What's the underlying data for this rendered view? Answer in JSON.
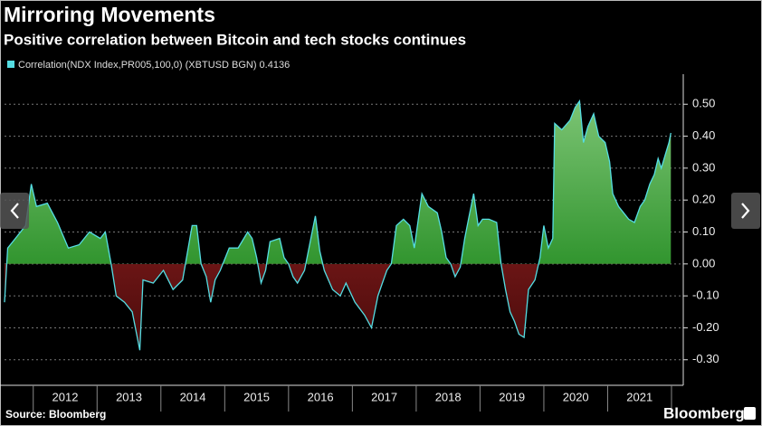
{
  "chart_data": {
    "type": "area",
    "title": "Mirroring Movements",
    "subtitle": "Positive correlation between Bitcoin and tech stocks continues",
    "source": "Source: Bloomberg",
    "brand": "Bloomberg",
    "x": [
      2011.55,
      2011.6,
      2011.72,
      2011.88,
      2011.97,
      2012.05,
      2012.22,
      2012.38,
      2012.55,
      2012.72,
      2012.88,
      2013.05,
      2013.13,
      2013.22,
      2013.3,
      2013.43,
      2013.55,
      2013.67,
      2013.72,
      2013.88,
      2014.04,
      2014.19,
      2014.34,
      2014.49,
      2014.56,
      2014.63,
      2014.71,
      2014.78,
      2014.85,
      2014.93,
      2015.07,
      2015.21,
      2015.36,
      2015.43,
      2015.5,
      2015.57,
      2015.64,
      2015.71,
      2015.86,
      2015.93,
      2016.0,
      2016.07,
      2016.14,
      2016.25,
      2016.35,
      2016.42,
      2016.49,
      2016.56,
      2016.69,
      2016.81,
      2016.9,
      2017.04,
      2017.19,
      2017.3,
      2017.4,
      2017.47,
      2017.54,
      2017.61,
      2017.69,
      2017.8,
      2017.9,
      2017.97,
      2018.09,
      2018.19,
      2018.33,
      2018.4,
      2018.47,
      2018.54,
      2018.61,
      2018.69,
      2018.76,
      2018.83,
      2018.9,
      2018.97,
      2019.04,
      2019.14,
      2019.26,
      2019.33,
      2019.4,
      2019.47,
      2019.54,
      2019.61,
      2019.69,
      2019.76,
      2019.86,
      2019.94,
      2020.0,
      2020.07,
      2020.14,
      2020.17,
      2020.28,
      2020.41,
      2020.49,
      2020.56,
      2020.62,
      2020.69,
      2020.78,
      2020.86,
      2020.96,
      2021.03,
      2021.08,
      2021.17,
      2021.25,
      2021.33,
      2021.42,
      2021.51,
      2021.58,
      2021.66,
      2021.73,
      2021.79,
      2021.84,
      2021.9,
      2021.96,
      2021.99
    ],
    "series": [
      {
        "name": "Correlation(NDX Index,PR005,100,0) (XBTUSD BGN) 0.4136",
        "color": "#55dde3",
        "values": [
          -0.12,
          0.05,
          0.08,
          0.12,
          0.25,
          0.18,
          0.19,
          0.13,
          0.05,
          0.06,
          0.1,
          0.08,
          0.1,
          0.0,
          -0.1,
          -0.12,
          -0.15,
          -0.27,
          -0.05,
          -0.06,
          -0.02,
          -0.08,
          -0.05,
          0.12,
          0.12,
          0.0,
          -0.04,
          -0.12,
          -0.05,
          -0.02,
          0.05,
          0.05,
          0.1,
          0.08,
          0.02,
          -0.06,
          -0.02,
          0.07,
          0.08,
          0.02,
          0.0,
          -0.04,
          -0.06,
          -0.02,
          0.08,
          0.15,
          0.04,
          -0.02,
          -0.08,
          -0.1,
          -0.06,
          -0.12,
          -0.16,
          -0.2,
          -0.1,
          -0.06,
          -0.02,
          0.0,
          0.12,
          0.14,
          0.12,
          0.05,
          0.22,
          0.18,
          0.16,
          0.1,
          0.02,
          0.0,
          -0.04,
          -0.01,
          0.08,
          0.15,
          0.22,
          0.12,
          0.14,
          0.14,
          0.13,
          0.0,
          -0.08,
          -0.15,
          -0.18,
          -0.22,
          -0.23,
          -0.08,
          -0.05,
          0.02,
          0.12,
          0.05,
          0.08,
          0.44,
          0.42,
          0.45,
          0.49,
          0.51,
          0.38,
          0.43,
          0.47,
          0.4,
          0.38,
          0.32,
          0.22,
          0.18,
          0.16,
          0.14,
          0.13,
          0.18,
          0.2,
          0.25,
          0.28,
          0.33,
          0.3,
          0.34,
          0.38,
          0.41
        ]
      }
    ],
    "area_colors": {
      "positive": [
        "#7cc474",
        "#0a7c0a"
      ],
      "negative": [
        "#a82828",
        "#4a0b0b"
      ]
    },
    "xlim": [
      2011.55,
      2022.0
    ],
    "xticks": [
      {
        "value": 2012,
        "label": "2012"
      },
      {
        "value": 2013,
        "label": "2013"
      },
      {
        "value": 2014,
        "label": "2014"
      },
      {
        "value": 2015,
        "label": "2015"
      },
      {
        "value": 2016,
        "label": "2016"
      },
      {
        "value": 2017,
        "label": "2017"
      },
      {
        "value": 2018,
        "label": "2018"
      },
      {
        "value": 2019,
        "label": "2019"
      },
      {
        "value": 2020,
        "label": "2020"
      },
      {
        "value": 2021,
        "label": "2021"
      }
    ],
    "ylim": [
      -0.38,
      0.58
    ],
    "yticks": [
      {
        "value": -0.3,
        "label": "-0.30"
      },
      {
        "value": -0.2,
        "label": "-0.20"
      },
      {
        "value": -0.1,
        "label": "-0.10"
      },
      {
        "value": 0,
        "label": "0.00"
      },
      {
        "value": 0.1,
        "label": "0.10"
      },
      {
        "value": 0.2,
        "label": "0.20"
      },
      {
        "value": 0.3,
        "label": "0.30"
      },
      {
        "value": 0.4,
        "label": "0.40"
      },
      {
        "value": 0.5,
        "label": "0.50"
      }
    ],
    "grid": true,
    "y_axis_side": "right"
  }
}
